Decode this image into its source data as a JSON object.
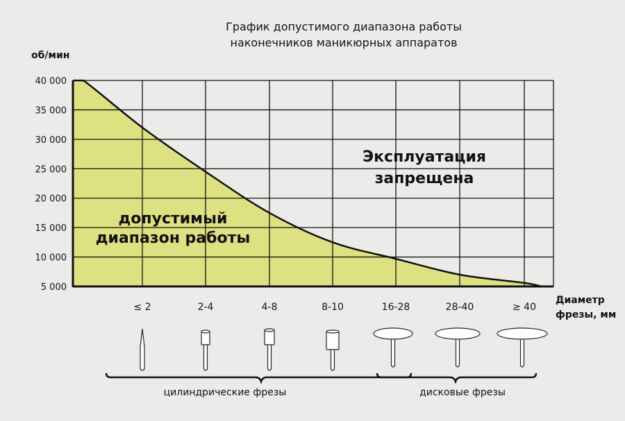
{
  "chart_data": {
    "type": "area",
    "title": [
      "График допустимого диапазона работы",
      "наконечников маникюрных аппаратов"
    ],
    "ylabel": "об/мин",
    "xlabel": [
      "Диаметр",
      "фрезы, мм"
    ],
    "ylim": [
      5000,
      40000
    ],
    "yticks": [
      "40 000",
      "35 000",
      "30 000",
      "25 000",
      "20 000",
      "15 000",
      "10 000",
      "5 000"
    ],
    "ytick_values": [
      40000,
      35000,
      30000,
      25000,
      20000,
      15000,
      10000,
      5000
    ],
    "categories": [
      "≤ 2",
      "2-4",
      "4-8",
      "8-10",
      "16-28",
      "28-40",
      "≥ 40"
    ],
    "values": [
      32000,
      24500,
      17500,
      12500,
      9700,
      7000,
      5600
    ],
    "curve_start": 40000,
    "curve_end": 5000,
    "grid": true,
    "fill_color": "#dde181",
    "annotations": {
      "allowed": [
        "допустимый",
        "диапазон работы"
      ],
      "forbidden": [
        "Эксплуатация",
        "запрещена"
      ]
    },
    "groups": [
      {
        "label": "цилиндрические фрезы",
        "categories": [
          "≤ 2",
          "2-4",
          "4-8",
          "8-10"
        ]
      },
      {
        "label": "дисковые фрезы",
        "categories": [
          "16-28",
          "28-40",
          "≥ 40"
        ]
      }
    ]
  }
}
